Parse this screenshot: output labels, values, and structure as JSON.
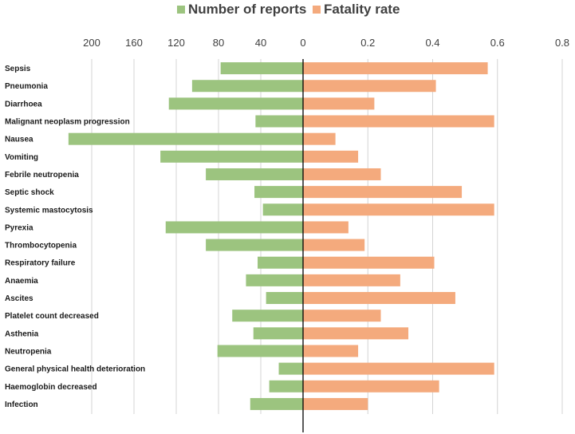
{
  "chart_data": {
    "type": "bar",
    "orientation": "horizontal-diverging",
    "title": "",
    "legend_position": "top-center",
    "grid": true,
    "colors": {
      "reports": "#9cc47f",
      "fatality": "#f4aa7d",
      "grid": "#d4d4d4",
      "axis": "#000000"
    },
    "categories": [
      "Sepsis",
      "Pneumonia",
      "Diarrhoea",
      "Malignant neoplasm progression",
      "Nausea",
      "Vomiting",
      "Febrile neutropenia",
      "Septic shock",
      "Systemic mastocytosis",
      "Pyrexia",
      "Thrombocytopenia",
      "Respiratory failure",
      "Anaemia",
      "Ascites",
      "Platelet count decreased",
      "Asthenia",
      "Neutropenia",
      "General physical health deterioration",
      "Haemoglobin decreased",
      "Infection"
    ],
    "series": [
      {
        "name": "Number of reports",
        "side": "left",
        "values": [
          78,
          105,
          127,
          45,
          222,
          135,
          92,
          46,
          38,
          130,
          92,
          43,
          54,
          35,
          67,
          47,
          81,
          23,
          32,
          50
        ]
      },
      {
        "name": "Fatality rate",
        "side": "right",
        "values": [
          0.57,
          0.41,
          0.22,
          0.59,
          0.1,
          0.17,
          0.24,
          0.49,
          0.59,
          0.14,
          0.19,
          0.405,
          0.3,
          0.47,
          0.24,
          0.325,
          0.17,
          0.59,
          0.42,
          0.2
        ]
      }
    ],
    "left_axis": {
      "ticks": [
        "200",
        "160",
        "120",
        "80",
        "40"
      ],
      "tick_values": [
        200,
        160,
        120,
        80,
        40
      ],
      "lim": [
        0,
        230
      ]
    },
    "right_axis": {
      "ticks": [
        "0",
        "0.2",
        "0.4",
        "0.6",
        "0.8"
      ],
      "tick_values": [
        0,
        0.2,
        0.4,
        0.6,
        0.8
      ],
      "lim": [
        0,
        0.8
      ]
    }
  }
}
